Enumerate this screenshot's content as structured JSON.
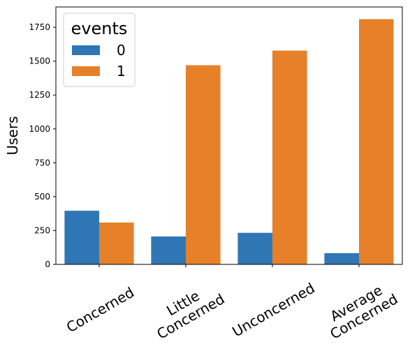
{
  "chart_data": {
    "type": "bar",
    "categories": [
      "Concerned",
      "Little\nConcerned",
      "Unconcerned",
      "Average\nConcerned"
    ],
    "series": [
      {
        "name": "0",
        "color": "#2f77b4",
        "values": [
          396,
          206,
          233,
          83
        ]
      },
      {
        "name": "1",
        "color": "#e6812a",
        "values": [
          309,
          1470,
          1578,
          1810
        ]
      }
    ],
    "ylabel": "Users",
    "xlabel": "",
    "ylim": [
      0,
      1900
    ],
    "yticks": [
      0,
      250,
      500,
      750,
      1000,
      1250,
      1500,
      1750
    ],
    "legend": {
      "title": "events",
      "placement": "top-left"
    },
    "grid": false
  }
}
